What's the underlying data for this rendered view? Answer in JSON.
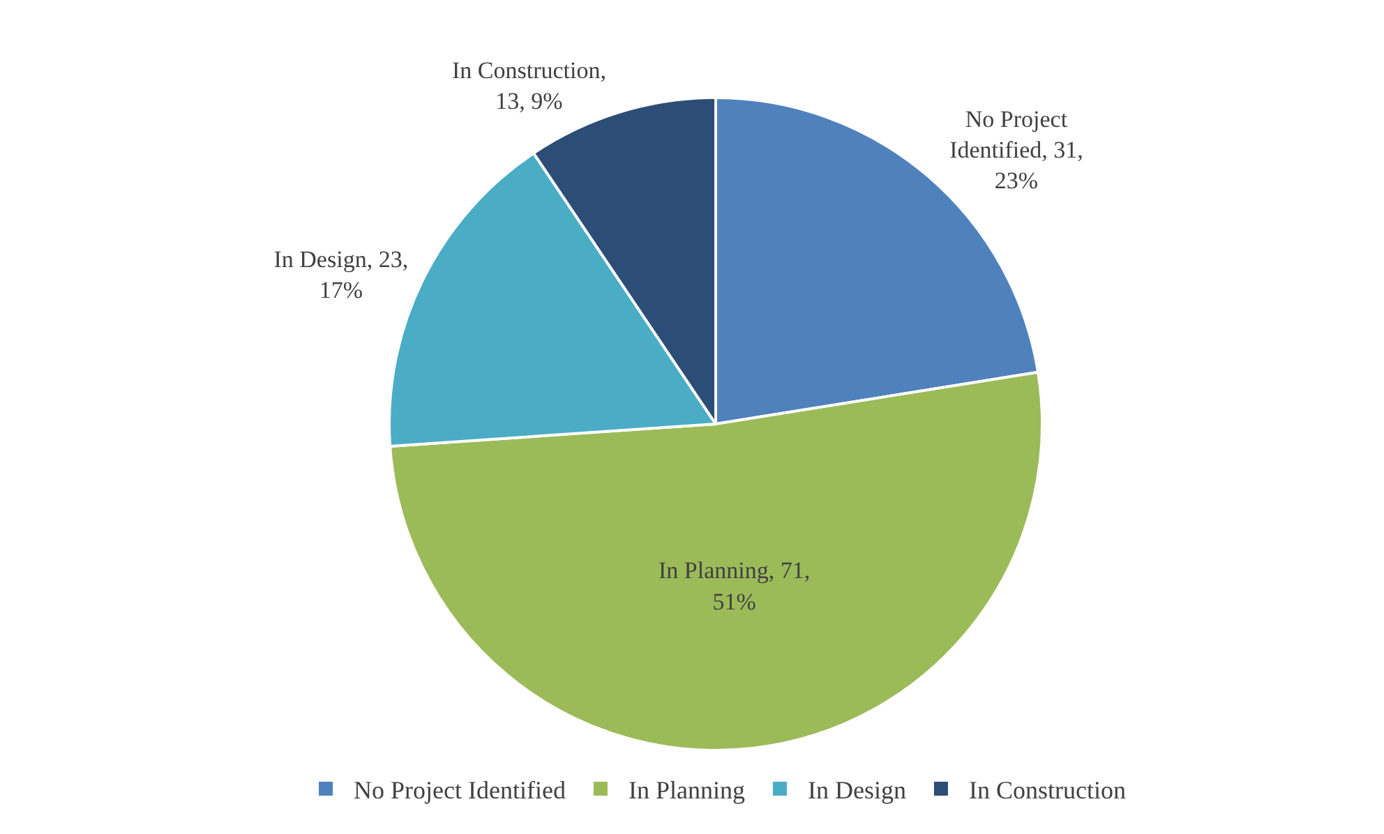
{
  "chart_data": {
    "type": "pie",
    "categories": [
      "No Project Identified",
      "In Planning",
      "In Design",
      "In Construction"
    ],
    "values": [
      31,
      71,
      23,
      13
    ],
    "colors": [
      "#4f81bd",
      "#9bbb59",
      "#4bacc6",
      "#2c4d75"
    ],
    "value_labels": [
      "No Project Identified, 31, 23%",
      "In Planning, 71, 51%",
      "In Design, 23, 17%",
      "In Construction, 13, 9%"
    ],
    "legend": "bottom"
  }
}
